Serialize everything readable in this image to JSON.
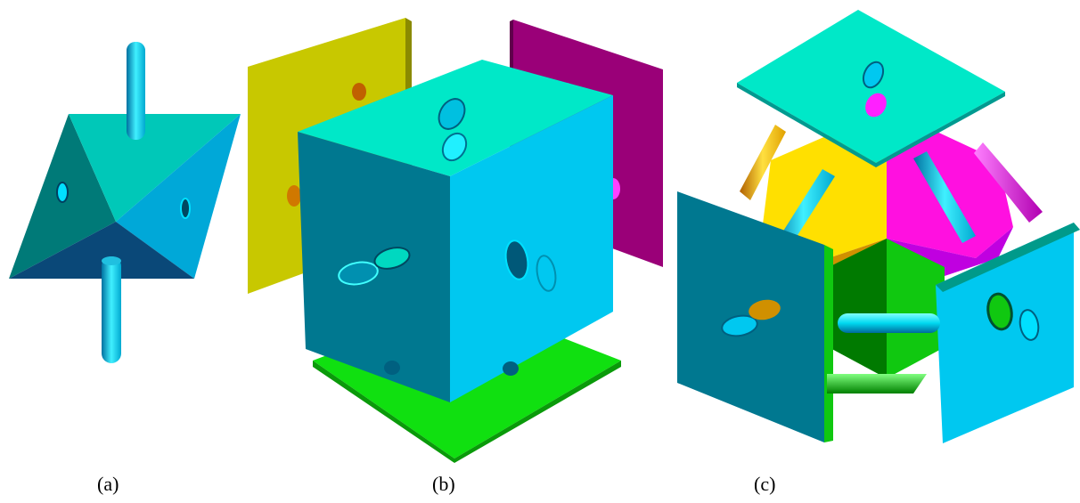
{
  "figure": {
    "panels": [
      {
        "id": "a",
        "caption": "(a)",
        "description_name": "octahedron-with-pegs"
      },
      {
        "id": "b",
        "caption": "(b)",
        "description_name": "cube-with-side-plates"
      },
      {
        "id": "c",
        "caption": "(c)",
        "description_name": "exploded-polyhedron-assembly"
      }
    ]
  },
  "colors": {
    "cyan": "#00e5c8",
    "sky": "#00c8f0",
    "teal": "#007a90",
    "navy": "#0a4a78",
    "yellow": "#c8c800",
    "gold": "#ffe000",
    "magenta": "#a0007a",
    "pink": "#ff00e0",
    "green": "#10e010",
    "darkgreen": "#008000"
  }
}
